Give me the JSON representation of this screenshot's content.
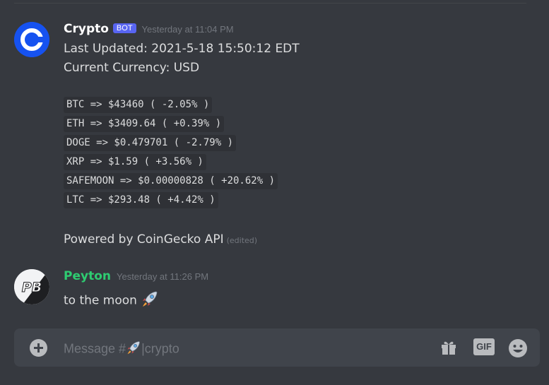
{
  "messages": [
    {
      "author": "Crypto",
      "author_color": "#ffffff",
      "badge": "BOT",
      "timestamp": "Yesterday at 11:04 PM",
      "avatar_icon": "coinbase-logo-icon",
      "lines": [
        "Last Updated: 2021-5-18 15:50:12 EDT",
        "Current Currency: USD"
      ],
      "code_lines": [
        "BTC => $43460 ( -2.05% )",
        "ETH => $3409.64 ( +0.39% )",
        "DOGE => $0.479701 ( -2.79% )",
        "XRP => $1.59 ( +3.56% )",
        "SAFEMOON => $0.00000828 ( +20.62% )",
        "LTC => $293.48 ( +4.42% )"
      ],
      "footer": "Powered by CoinGecko API",
      "edited": "(edited)"
    },
    {
      "author": "Peyton",
      "author_color": "#2ecc71",
      "timestamp": "Yesterday at 11:26 PM",
      "avatar_icon": "pb-logo-icon",
      "avatar_text": "PB",
      "text": "to the moon",
      "emoji": "rocket-icon"
    }
  ],
  "composer": {
    "placeholder_prefix": "Message #",
    "placeholder_suffix": "|crypto",
    "icons": [
      "add-icon",
      "gift-icon",
      "gif-icon",
      "emoji-icon"
    ],
    "gif_label": "GIF"
  }
}
